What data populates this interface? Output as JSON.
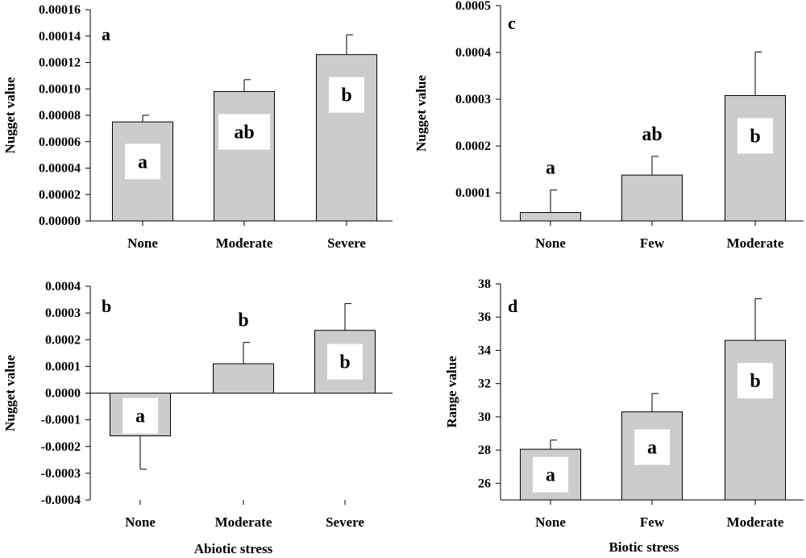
{
  "colors": {
    "bar": "#cccccc",
    "axis": "#000000",
    "label_box": "#ffffff"
  },
  "chart_data": [
    {
      "panel": "a",
      "type": "bar",
      "categories": [
        "None",
        "Moderate",
        "Severe"
      ],
      "values": [
        7.5e-05,
        9.8e-05,
        0.000126
      ],
      "errors": [
        5e-06,
        9e-06,
        1.5e-05
      ],
      "significance": [
        "a",
        "ab",
        "b"
      ],
      "sig_style": [
        "boxed",
        "boxed",
        "boxed"
      ],
      "ylabel": "Nugget value",
      "xlabel": "",
      "ylim": [
        0,
        0.00016
      ],
      "yticks": [
        0,
        2e-05,
        4e-05,
        6e-05,
        8e-05,
        0.0001,
        0.00012,
        0.00014,
        0.00016
      ],
      "yticklabels": [
        "0.00000",
        "0.00002",
        "0.00004",
        "0.00006",
        "0.00008",
        "0.00010",
        "0.00012",
        "0.00014",
        "0.00016"
      ]
    },
    {
      "panel": "b",
      "type": "bar",
      "categories": [
        "None",
        "Moderate",
        "Severe"
      ],
      "values": [
        -0.00016,
        0.00011,
        0.000235
      ],
      "errors": [
        0.000125,
        8e-05,
        0.0001
      ],
      "significance": [
        "a",
        "b",
        "b"
      ],
      "sig_style": [
        "boxed",
        "above",
        "boxed"
      ],
      "ylabel": "Nugget value",
      "xlabel": "Abiotic stress",
      "ylim": [
        -0.0004,
        0.0004
      ],
      "yticks": [
        -0.0004,
        -0.0003,
        -0.0002,
        -0.0001,
        0,
        0.0001,
        0.0002,
        0.0003,
        0.0004
      ],
      "yticklabels": [
        "-0.0004",
        "-0.0003",
        "-0.0002",
        "-0.0001",
        "0.0000",
        "0.0001",
        "0.0002",
        "0.0003",
        "0.0004"
      ]
    },
    {
      "panel": "c",
      "type": "bar",
      "categories": [
        "None",
        "Few",
        "Moderate"
      ],
      "values": [
        5.8e-05,
        0.000138,
        0.000308
      ],
      "errors": [
        4.8e-05,
        4e-05,
        9.3e-05
      ],
      "significance": [
        "a",
        "ab",
        "b"
      ],
      "sig_style": [
        "above",
        "above",
        "boxed"
      ],
      "ylabel": "Nugget value",
      "xlabel": "",
      "ylim": [
        4e-05,
        0.0005
      ],
      "yticks": [
        0.0001,
        0.0002,
        0.0003,
        0.0004,
        0.0005
      ],
      "yticklabels": [
        "0.0001",
        "0.0002",
        "0.0003",
        "0.0004",
        "0.0005"
      ]
    },
    {
      "panel": "d",
      "type": "bar",
      "categories": [
        "None",
        "Few",
        "Moderate"
      ],
      "values": [
        28.05,
        30.3,
        34.6
      ],
      "errors": [
        0.55,
        1.1,
        2.5
      ],
      "significance": [
        "a",
        "a",
        "b"
      ],
      "sig_style": [
        "boxed",
        "boxed",
        "boxed"
      ],
      "ylabel": "Range value",
      "xlabel": "Biotic stress",
      "ylim": [
        25,
        38
      ],
      "yticks": [
        26,
        28,
        30,
        32,
        34,
        36,
        38
      ],
      "yticklabels": [
        "26",
        "28",
        "30",
        "32",
        "34",
        "36",
        "38"
      ]
    }
  ]
}
